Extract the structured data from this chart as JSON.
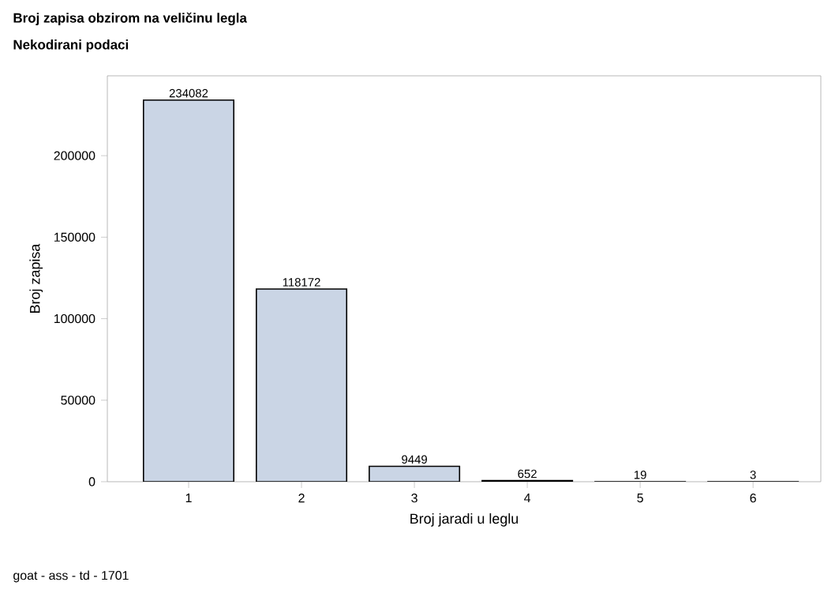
{
  "chart_data": {
    "type": "bar",
    "title": "Broj zapisa obzirom na veličinu legla",
    "subtitle": "Nekodirani podaci",
    "xlabel": "Broj jaradi u leglu",
    "ylabel": "Broj zapisa",
    "categories": [
      "1",
      "2",
      "3",
      "4",
      "5",
      "6"
    ],
    "values": [
      234082,
      118172,
      9449,
      652,
      19,
      3
    ],
    "color": "#cad5e5",
    "data_labels": true,
    "ylim": [
      0,
      249000
    ],
    "yticks": [
      0,
      50000,
      100000,
      150000,
      200000
    ],
    "annotations": [
      "goat - ass - td - 1701"
    ]
  }
}
